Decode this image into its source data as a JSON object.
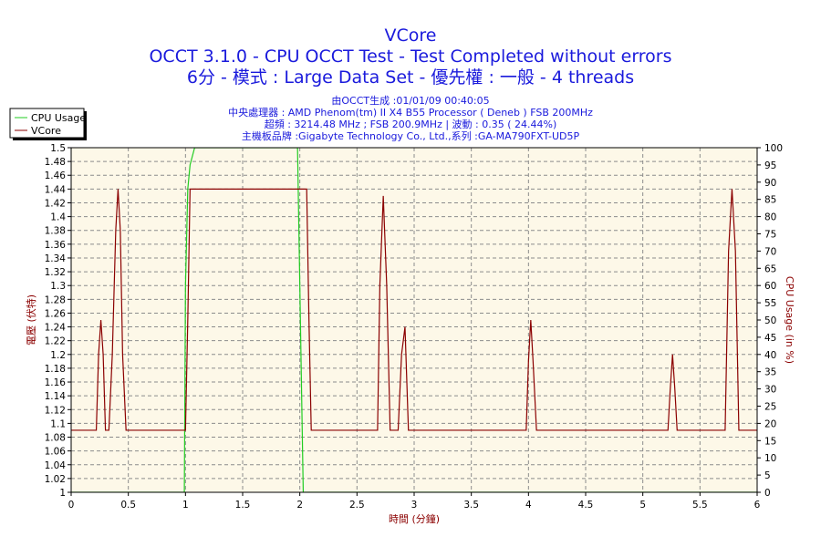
{
  "header": {
    "title": "VCore",
    "line1": "OCCT 3.1.0 - CPU OCCT Test - Test Completed without errors",
    "line2": "6分 - 模式 : Large Data Set - 優先權 : 一般 - 4 threads",
    "info1": "由OCCT生成 :01/01/09 00:40:05",
    "info2": "中央處理器 : AMD Phenom(tm) II X4 B55 Processor ( Deneb ) FSB 200MHz",
    "info3": "超頻 : 3214.48 MHz ; FSB 200.9MHz | 波動 : 0.35 ( 24.44%)",
    "info4": "主機板品牌 :Gigabyte Technology Co., Ltd.,系列 :GA-MA790FXT-UD5P"
  },
  "colors": {
    "background": "#ffffff",
    "plot_background": "#fdf8e8",
    "grid": "#8c8c8c",
    "title": "#1a1adc",
    "vcore": "#8b0000",
    "cpu_usage": "#22cc22",
    "axis_label": "#8b0000"
  },
  "chart_data": {
    "type": "line",
    "title": "VCore",
    "xlabel": "時間 (分鐘)",
    "ylabel": "電壓 (伏特)",
    "y2label": "CPU Usage (in %)",
    "xlim": [
      0,
      6
    ],
    "ylim": [
      1,
      1.5
    ],
    "y2lim": [
      0,
      100
    ],
    "x_ticks": [
      "0",
      "0.5",
      "1",
      "1.5",
      "2",
      "2.5",
      "3",
      "3.5",
      "4",
      "4.5",
      "5",
      "5.5",
      "6"
    ],
    "y_ticks": [
      "1",
      "1.02",
      "1.04",
      "1.06",
      "1.08",
      "1.1",
      "1.12",
      "1.14",
      "1.16",
      "1.18",
      "1.2",
      "1.22",
      "1.24",
      "1.26",
      "1.28",
      "1.3",
      "1.32",
      "1.34",
      "1.36",
      "1.38",
      "1.4",
      "1.42",
      "1.44",
      "1.46",
      "1.48",
      "1.5"
    ],
    "y2_ticks": [
      "0",
      "5",
      "10",
      "15",
      "20",
      "25",
      "30",
      "35",
      "40",
      "45",
      "50",
      "55",
      "60",
      "65",
      "70",
      "75",
      "80",
      "85",
      "90",
      "95",
      "100"
    ],
    "grid": true,
    "legend_position": "top-left",
    "series": [
      {
        "name": "CPU Usage",
        "axis": "right",
        "color": "#22cc22",
        "x": [
          0.0,
          0.5,
          0.99,
          1.0,
          1.02,
          1.04,
          1.08,
          1.15,
          1.5,
          1.98,
          2.0,
          2.03,
          2.1,
          3.0,
          4.0,
          5.0,
          6.0
        ],
        "y": [
          0,
          0,
          0,
          60,
          88,
          95,
          100,
          100,
          100,
          100,
          60,
          0,
          0,
          0,
          0,
          0,
          0
        ]
      },
      {
        "name": "VCore",
        "axis": "left",
        "color": "#8b0000",
        "x": [
          0.0,
          0.22,
          0.24,
          0.26,
          0.28,
          0.3,
          0.33,
          0.36,
          0.39,
          0.41,
          0.43,
          0.45,
          0.48,
          0.5,
          1.0,
          1.02,
          1.04,
          1.5,
          2.0,
          2.06,
          2.08,
          2.1,
          2.5,
          2.68,
          2.7,
          2.73,
          2.76,
          2.79,
          2.82,
          2.86,
          2.89,
          2.92,
          2.95,
          3.0,
          3.5,
          3.98,
          4.0,
          4.02,
          4.04,
          4.07,
          4.1,
          4.5,
          5.0,
          5.22,
          5.24,
          5.26,
          5.28,
          5.3,
          5.5,
          5.72,
          5.75,
          5.78,
          5.81,
          5.84,
          6.0
        ],
        "y": [
          1.09,
          1.09,
          1.2,
          1.25,
          1.2,
          1.09,
          1.09,
          1.2,
          1.38,
          1.44,
          1.38,
          1.2,
          1.09,
          1.09,
          1.09,
          1.25,
          1.44,
          1.44,
          1.44,
          1.44,
          1.25,
          1.09,
          1.09,
          1.09,
          1.3,
          1.43,
          1.3,
          1.09,
          1.09,
          1.09,
          1.2,
          1.24,
          1.09,
          1.09,
          1.09,
          1.09,
          1.19,
          1.25,
          1.19,
          1.09,
          1.09,
          1.09,
          1.09,
          1.09,
          1.15,
          1.2,
          1.15,
          1.09,
          1.09,
          1.09,
          1.35,
          1.44,
          1.35,
          1.09,
          1.09
        ]
      }
    ]
  }
}
